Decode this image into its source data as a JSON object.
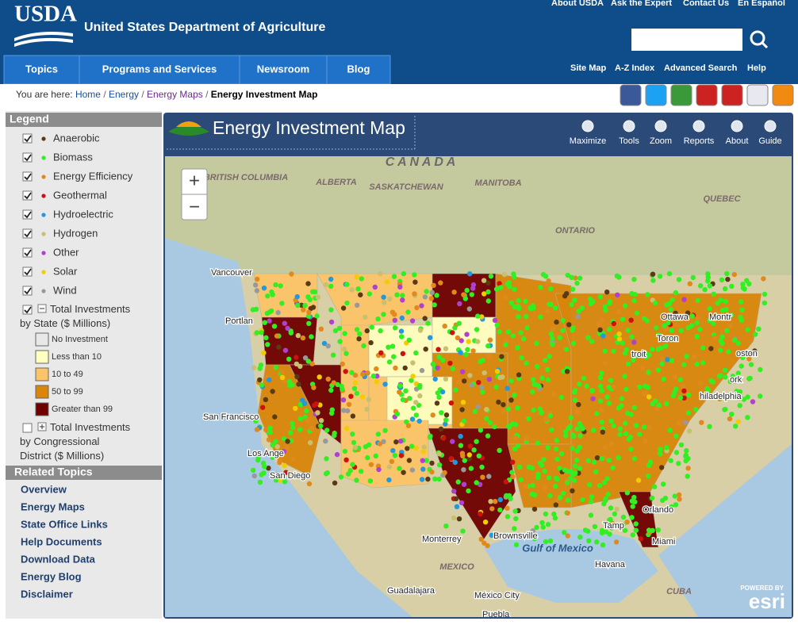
{
  "header": {
    "logo": "USDA",
    "title": "United States Department of Agriculture",
    "top_links": [
      "About USDA",
      "Ask the Expert",
      "Contact Us",
      "En Español"
    ],
    "nav": [
      "Topics",
      "Programs and Services",
      "Newsroom",
      "Blog"
    ],
    "util_links": [
      "Site Map",
      "A-Z Index",
      "Advanced Search",
      "Help"
    ]
  },
  "breadcrumb": {
    "label": "You are here:",
    "items": [
      "Home",
      "Energy",
      "Energy Maps",
      "Energy Investment Map"
    ]
  },
  "legend": {
    "title": "Legend",
    "layers": [
      {
        "name": "Anaerobic",
        "color": "#5a3a14"
      },
      {
        "name": "Biomass",
        "color": "#33ee22"
      },
      {
        "name": "Energy Efficiency",
        "color": "#e08a1e"
      },
      {
        "name": "Geothermal",
        "color": "#cc1111"
      },
      {
        "name": "Hydroelectric",
        "color": "#2299dd"
      },
      {
        "name": "Hydrogen",
        "color": "#c8c070"
      },
      {
        "name": "Other",
        "color": "#b040d0"
      },
      {
        "name": "Solar",
        "color": "#f0cc00"
      },
      {
        "name": "Wind",
        "color": "#999999"
      }
    ],
    "state_group": "Total Investments by State ($ Millions)",
    "classes": [
      {
        "label": "No Investment",
        "color": "#e8e8e8"
      },
      {
        "label": "Less than 10",
        "color": "#ffffc0"
      },
      {
        "label": "10 to 49",
        "color": "#fcc468"
      },
      {
        "label": "50 to 99",
        "color": "#d9860a"
      },
      {
        "label": "Greater than 99",
        "color": "#6e0000"
      }
    ],
    "district_group": "Total Investments by Congressional District ($ Millions)"
  },
  "related": {
    "title": "Related Topics",
    "links": [
      "Overview",
      "Energy Maps",
      "State Office Links",
      "Help Documents",
      "Download Data",
      "Energy Blog",
      "Disclaimer"
    ]
  },
  "map": {
    "title": "Energy Investment Map",
    "tools": [
      "Maximize",
      "Tools",
      "Zoom",
      "Reports",
      "About",
      "Guide"
    ],
    "zoom": [
      "+",
      "−"
    ],
    "labels": [
      "C A N A D A",
      "BRITISH COLUMBIA",
      "ALBERTA",
      "SASKATCHEWAN",
      "MANITOBA",
      "ONTARIO",
      "QUEBEC",
      "Vancouver",
      "Portlan",
      "San Francisco",
      "Los Ange",
      "San Diego",
      "Monterrey",
      "Brownsville",
      "Gulf of Mexico",
      "MEXICO",
      "Guadalajara",
      "México City",
      "Havana",
      "CUBA",
      "Miami",
      "Orlando",
      "Tamp",
      "hiladelphia",
      "ork",
      "oston",
      "Toron",
      "Ottawa",
      "Montr",
      "troit",
      "Puebla"
    ],
    "attribution": [
      "POWERED BY",
      "esri"
    ]
  }
}
